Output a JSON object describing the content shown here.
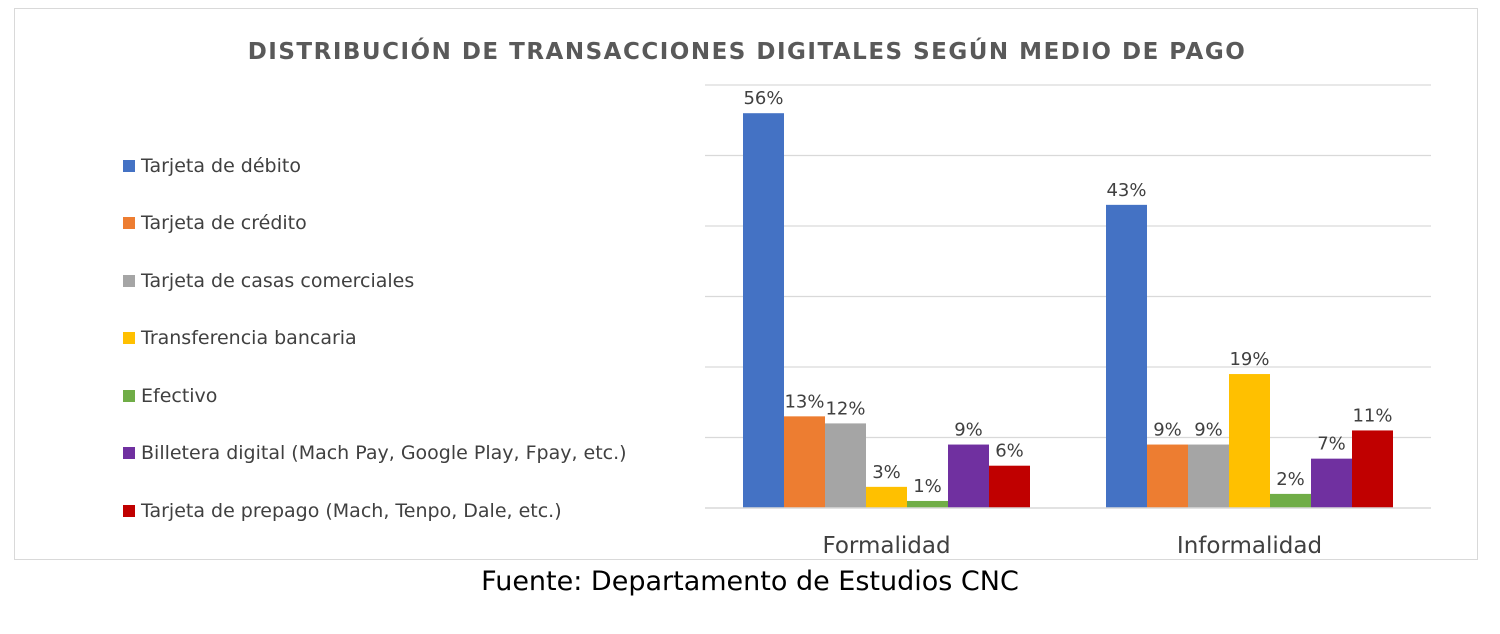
{
  "chart_data": {
    "type": "bar",
    "title": "DISTRIBUCIÓN DE TRANSACCIONES DIGITALES SEGÚN MEDIO DE PAGO",
    "categories": [
      "Formalidad",
      "Informalidad"
    ],
    "series": [
      {
        "name": "Tarjeta de débito",
        "color": "#4472C4",
        "values": [
          56,
          43
        ],
        "labels": [
          "56%",
          "43%"
        ]
      },
      {
        "name": "Tarjeta de crédito",
        "color": "#ED7D31",
        "values": [
          13,
          9
        ],
        "labels": [
          "13%",
          "9%"
        ]
      },
      {
        "name": "Tarjeta de casas comerciales",
        "color": "#A5A5A5",
        "values": [
          12,
          9
        ],
        "labels": [
          "12%",
          "9%"
        ]
      },
      {
        "name": "Transferencia bancaria",
        "color": "#FFC000",
        "values": [
          3,
          19
        ],
        "labels": [
          "3%",
          "19%"
        ]
      },
      {
        "name": "Efectivo",
        "color": "#70AD47",
        "values": [
          1,
          2
        ],
        "labels": [
          "1%",
          "2%"
        ]
      },
      {
        "name": "Billetera digital (Mach Pay, Google Play, Fpay, etc.)",
        "color": "#7030A0",
        "values": [
          9,
          7
        ],
        "labels": [
          "9%",
          "7%"
        ]
      },
      {
        "name": "Tarjeta de prepago (Mach, Tenpo, Dale, etc.)",
        "color": "#C00000",
        "values": [
          6,
          11
        ],
        "labels": [
          "6%",
          "11%"
        ]
      }
    ],
    "ylim": [
      0,
      60
    ],
    "gridlines": true,
    "legend_position": "left",
    "unit": "%"
  },
  "source_note": "Fuente: Departamento de Estudios CNC"
}
